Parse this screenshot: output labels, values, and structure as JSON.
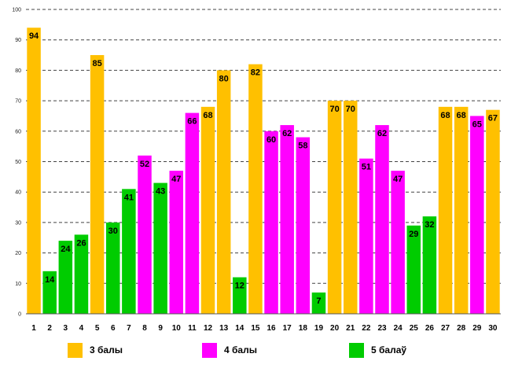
{
  "chart_data": {
    "type": "bar",
    "title": "",
    "xlabel": "",
    "ylabel": "",
    "ylim": [
      0,
      100
    ],
    "yticks": [
      0,
      10,
      20,
      30,
      40,
      50,
      60,
      70,
      80,
      90,
      100
    ],
    "grid": true,
    "categories": [
      "1",
      "2",
      "3",
      "4",
      "5",
      "6",
      "7",
      "8",
      "9",
      "10",
      "11",
      "12",
      "13",
      "14",
      "15",
      "16",
      "17",
      "18",
      "19",
      "20",
      "21",
      "22",
      "23",
      "24",
      "25",
      "26",
      "27",
      "28",
      "29",
      "30"
    ],
    "values": [
      94,
      14,
      24,
      26,
      85,
      30,
      41,
      52,
      43,
      47,
      66,
      68,
      80,
      12,
      82,
      60,
      62,
      58,
      7,
      70,
      70,
      51,
      62,
      47,
      29,
      32,
      68,
      68,
      65,
      67
    ],
    "groups": [
      3,
      5,
      5,
      5,
      3,
      5,
      5,
      4,
      5,
      4,
      4,
      3,
      3,
      5,
      3,
      4,
      4,
      4,
      5,
      3,
      3,
      4,
      4,
      4,
      5,
      5,
      3,
      3,
      4,
      3
    ],
    "legend": [
      {
        "group": 3,
        "label": "3 балы",
        "color": "#FFC000"
      },
      {
        "group": 4,
        "label": "4 балы",
        "color": "#FF00FF"
      },
      {
        "group": 5,
        "label": "5 балаў",
        "color": "#00CC00"
      }
    ],
    "legend_position": "bottom"
  }
}
